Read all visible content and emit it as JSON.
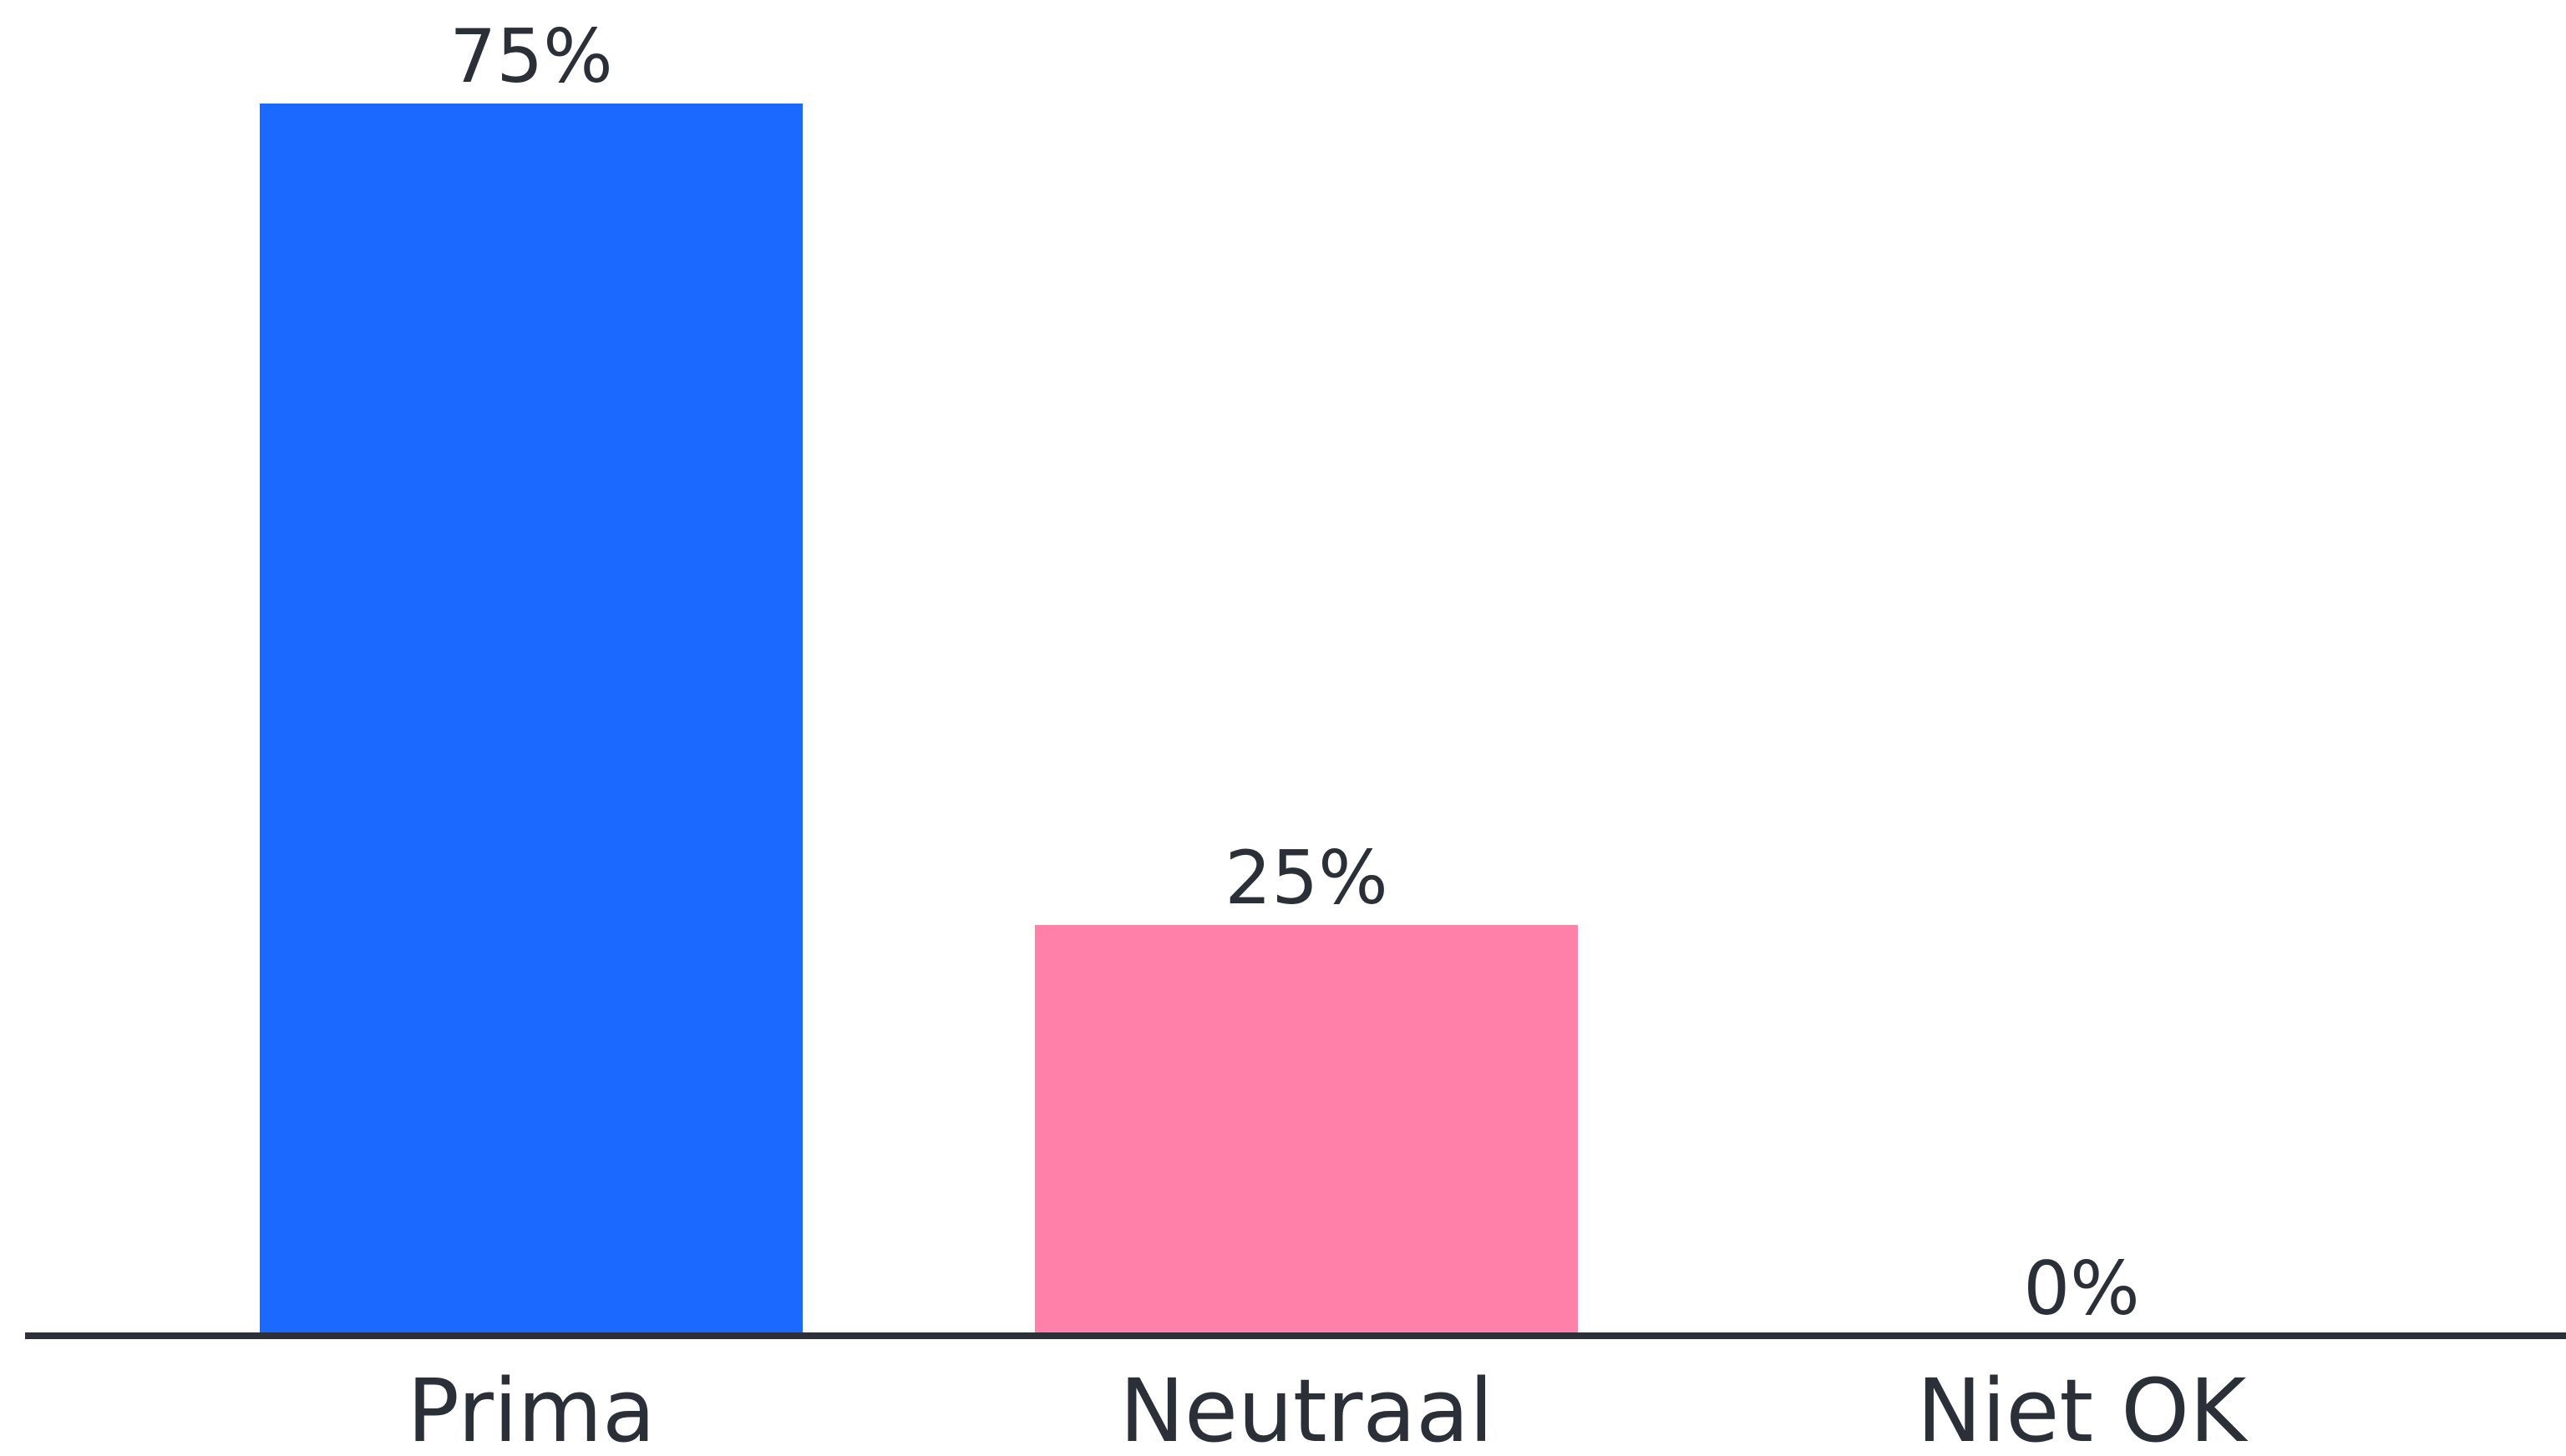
{
  "chart_data": {
    "type": "bar",
    "categories": [
      "Prima",
      "Neutraal",
      "Niet OK"
    ],
    "values": [
      75,
      25,
      0
    ],
    "value_labels": [
      "75%",
      "25%",
      "0%"
    ],
    "colors": [
      "#1b69ff",
      "#ff80a8",
      "#9aa0aa"
    ],
    "axis_color": "#2b2f38",
    "title": "",
    "xlabel": "",
    "ylabel": "",
    "ylim": [
      0,
      75
    ],
    "grid": false,
    "legend": "none"
  }
}
